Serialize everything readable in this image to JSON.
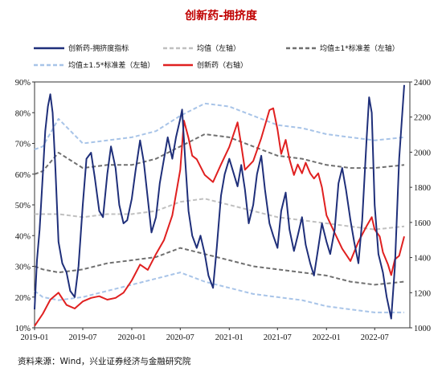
{
  "chart_data": {
    "type": "line",
    "title": "创新药-拥挤度",
    "source": "资料来源：Wind，兴业证券经济与金融研究院",
    "x_ticks": [
      "2019-01",
      "2019-07",
      "2020-01",
      "2020-07",
      "2021-01",
      "2021-07",
      "2022-01",
      "2022-07"
    ],
    "y_left": {
      "ylim": [
        0.1,
        0.9
      ],
      "ticks": [
        "10%",
        "20%",
        "30%",
        "40%",
        "50%",
        "60%",
        "70%",
        "80%",
        "90%"
      ]
    },
    "y_right": {
      "ylim": [
        1000,
        2400
      ],
      "ticks": [
        "1000",
        "1200",
        "1400",
        "1600",
        "1800",
        "2000",
        "2200",
        "2400"
      ]
    },
    "legend": [
      "创新药-拥挤度指标",
      "均值（左轴）",
      "均值±1*标准差（左轴）",
      "均值±1.5*标准差（左轴）",
      "创新药（右轴）"
    ],
    "colors": {
      "crowding": "#1f2f7a",
      "mean": "#c0c0c0",
      "std1": "#707070",
      "std15": "#a8c4e8",
      "price": "#e02020"
    },
    "series": [
      {
        "name": "创新药-拥挤度指标",
        "axis": "left",
        "points": [
          [
            "2019-01-01",
            0.16
          ],
          [
            "2019-01-10",
            0.32
          ],
          [
            "2019-01-20",
            0.42
          ],
          [
            "2019-02-01",
            0.6
          ],
          [
            "2019-02-10",
            0.74
          ],
          [
            "2019-02-20",
            0.82
          ],
          [
            "2019-03-01",
            0.86
          ],
          [
            "2019-03-10",
            0.8
          ],
          [
            "2019-03-20",
            0.62
          ],
          [
            "2019-04-01",
            0.38
          ],
          [
            "2019-04-15",
            0.31
          ],
          [
            "2019-05-01",
            0.28
          ],
          [
            "2019-05-15",
            0.22
          ],
          [
            "2019-06-01",
            0.2
          ],
          [
            "2019-06-15",
            0.3
          ],
          [
            "2019-07-01",
            0.5
          ],
          [
            "2019-07-15",
            0.65
          ],
          [
            "2019-08-01",
            0.67
          ],
          [
            "2019-08-15",
            0.59
          ],
          [
            "2019-09-01",
            0.48
          ],
          [
            "2019-09-15",
            0.46
          ],
          [
            "2019-10-01",
            0.6
          ],
          [
            "2019-10-15",
            0.69
          ],
          [
            "2019-11-01",
            0.62
          ],
          [
            "2019-11-15",
            0.5
          ],
          [
            "2019-12-01",
            0.44
          ],
          [
            "2019-12-15",
            0.45
          ],
          [
            "2020-01-01",
            0.52
          ],
          [
            "2020-01-15",
            0.61
          ],
          [
            "2020-02-01",
            0.71
          ],
          [
            "2020-02-15",
            0.64
          ],
          [
            "2020-03-01",
            0.52
          ],
          [
            "2020-03-15",
            0.41
          ],
          [
            "2020-04-01",
            0.46
          ],
          [
            "2020-04-15",
            0.57
          ],
          [
            "2020-05-01",
            0.65
          ],
          [
            "2020-05-15",
            0.72
          ],
          [
            "2020-06-01",
            0.65
          ],
          [
            "2020-06-15",
            0.72
          ],
          [
            "2020-07-01",
            0.78
          ],
          [
            "2020-07-08",
            0.81
          ],
          [
            "2020-07-20",
            0.64
          ],
          [
            "2020-08-01",
            0.48
          ],
          [
            "2020-08-15",
            0.4
          ],
          [
            "2020-09-01",
            0.36
          ],
          [
            "2020-09-15",
            0.4
          ],
          [
            "2020-10-01",
            0.34
          ],
          [
            "2020-10-15",
            0.27
          ],
          [
            "2020-11-01",
            0.23
          ],
          [
            "2020-11-15",
            0.36
          ],
          [
            "2020-12-01",
            0.53
          ],
          [
            "2020-12-15",
            0.6
          ],
          [
            "2021-01-01",
            0.65
          ],
          [
            "2021-01-15",
            0.61
          ],
          [
            "2021-02-01",
            0.56
          ],
          [
            "2021-02-15",
            0.63
          ],
          [
            "2021-03-01",
            0.55
          ],
          [
            "2021-03-15",
            0.44
          ],
          [
            "2021-04-01",
            0.5
          ],
          [
            "2021-04-15",
            0.6
          ],
          [
            "2021-05-01",
            0.66
          ],
          [
            "2021-05-15",
            0.55
          ],
          [
            "2021-06-01",
            0.44
          ],
          [
            "2021-06-15",
            0.4
          ],
          [
            "2021-07-01",
            0.36
          ],
          [
            "2021-07-15",
            0.48
          ],
          [
            "2021-08-01",
            0.54
          ],
          [
            "2021-08-15",
            0.42
          ],
          [
            "2021-09-01",
            0.35
          ],
          [
            "2021-09-15",
            0.4
          ],
          [
            "2021-10-01",
            0.46
          ],
          [
            "2021-10-15",
            0.37
          ],
          [
            "2021-11-01",
            0.31
          ],
          [
            "2021-11-15",
            0.27
          ],
          [
            "2021-12-01",
            0.36
          ],
          [
            "2021-12-15",
            0.44
          ],
          [
            "2022-01-01",
            0.38
          ],
          [
            "2022-01-15",
            0.34
          ],
          [
            "2022-02-01",
            0.42
          ],
          [
            "2022-02-15",
            0.57
          ],
          [
            "2022-03-01",
            0.62
          ],
          [
            "2022-03-15",
            0.55
          ],
          [
            "2022-04-01",
            0.45
          ],
          [
            "2022-04-15",
            0.38
          ],
          [
            "2022-05-01",
            0.31
          ],
          [
            "2022-05-15",
            0.45
          ],
          [
            "2022-06-01",
            0.72
          ],
          [
            "2022-06-10",
            0.85
          ],
          [
            "2022-06-20",
            0.8
          ],
          [
            "2022-07-01",
            0.5
          ],
          [
            "2022-07-15",
            0.34
          ],
          [
            "2022-08-01",
            0.28
          ],
          [
            "2022-08-15",
            0.2
          ],
          [
            "2022-09-01",
            0.13
          ],
          [
            "2022-09-15",
            0.3
          ],
          [
            "2022-10-01",
            0.65
          ],
          [
            "2022-10-20",
            0.89
          ]
        ]
      },
      {
        "name": "均值（左轴）",
        "axis": "left",
        "points": [
          [
            "2019-01-01",
            0.47
          ],
          [
            "2019-04-01",
            0.47
          ],
          [
            "2019-07-01",
            0.46
          ],
          [
            "2019-10-01",
            0.47
          ],
          [
            "2020-01-01",
            0.47
          ],
          [
            "2020-04-01",
            0.48
          ],
          [
            "2020-07-01",
            0.51
          ],
          [
            "2020-10-01",
            0.52
          ],
          [
            "2021-01-01",
            0.5
          ],
          [
            "2021-04-01",
            0.48
          ],
          [
            "2021-07-01",
            0.46
          ],
          [
            "2021-10-01",
            0.45
          ],
          [
            "2022-01-01",
            0.44
          ],
          [
            "2022-04-01",
            0.43
          ],
          [
            "2022-07-01",
            0.42
          ],
          [
            "2022-10-20",
            0.43
          ]
        ]
      },
      {
        "name": "均值±1*标准差（左轴）",
        "axis": "left",
        "points": [
          [
            "2019-01-01",
            0.6
          ],
          [
            "2019-02-01",
            0.61
          ],
          [
            "2019-04-01",
            0.67
          ],
          [
            "2019-07-01",
            0.62
          ],
          [
            "2019-10-01",
            0.63
          ],
          [
            "2020-01-01",
            0.63
          ],
          [
            "2020-04-01",
            0.65
          ],
          [
            "2020-07-01",
            0.69
          ],
          [
            "2020-10-01",
            0.73
          ],
          [
            "2021-01-01",
            0.72
          ],
          [
            "2021-04-01",
            0.69
          ],
          [
            "2021-07-01",
            0.66
          ],
          [
            "2021-10-01",
            0.65
          ],
          [
            "2022-01-01",
            0.63
          ],
          [
            "2022-04-01",
            0.62
          ],
          [
            "2022-07-01",
            0.62
          ],
          [
            "2022-10-20",
            0.63
          ]
        ]
      },
      {
        "name": "均值±1*标准差（左轴）",
        "axis": "left",
        "points": [
          [
            "2019-01-01",
            0.3
          ],
          [
            "2019-02-01",
            0.29
          ],
          [
            "2019-04-01",
            0.28
          ],
          [
            "2019-07-01",
            0.29
          ],
          [
            "2019-10-01",
            0.31
          ],
          [
            "2020-01-01",
            0.32
          ],
          [
            "2020-04-01",
            0.33
          ],
          [
            "2020-07-01",
            0.36
          ],
          [
            "2020-10-01",
            0.34
          ],
          [
            "2021-01-01",
            0.32
          ],
          [
            "2021-04-01",
            0.3
          ],
          [
            "2021-07-01",
            0.29
          ],
          [
            "2021-10-01",
            0.28
          ],
          [
            "2022-01-01",
            0.27
          ],
          [
            "2022-04-01",
            0.25
          ],
          [
            "2022-07-01",
            0.24
          ],
          [
            "2022-10-20",
            0.25
          ]
        ]
      },
      {
        "name": "均值±1.5*标准差（左轴）",
        "axis": "left",
        "points": [
          [
            "2019-01-01",
            0.68
          ],
          [
            "2019-02-01",
            0.69
          ],
          [
            "2019-04-01",
            0.78
          ],
          [
            "2019-07-01",
            0.7
          ],
          [
            "2019-10-01",
            0.71
          ],
          [
            "2020-01-01",
            0.72
          ],
          [
            "2020-04-01",
            0.74
          ],
          [
            "2020-07-01",
            0.79
          ],
          [
            "2020-10-01",
            0.83
          ],
          [
            "2021-01-01",
            0.82
          ],
          [
            "2021-04-01",
            0.79
          ],
          [
            "2021-07-01",
            0.76
          ],
          [
            "2021-10-01",
            0.75
          ],
          [
            "2022-01-01",
            0.73
          ],
          [
            "2022-04-01",
            0.72
          ],
          [
            "2022-07-01",
            0.71
          ],
          [
            "2022-10-20",
            0.72
          ]
        ]
      },
      {
        "name": "均值±1.5*标准差（左轴）",
        "axis": "left",
        "points": [
          [
            "2019-01-01",
            0.22
          ],
          [
            "2019-02-01",
            0.2
          ],
          [
            "2019-04-01",
            0.19
          ],
          [
            "2019-07-01",
            0.2
          ],
          [
            "2019-10-01",
            0.22
          ],
          [
            "2020-01-01",
            0.24
          ],
          [
            "2020-04-01",
            0.26
          ],
          [
            "2020-07-01",
            0.28
          ],
          [
            "2020-10-01",
            0.25
          ],
          [
            "2021-01-01",
            0.23
          ],
          [
            "2021-04-01",
            0.21
          ],
          [
            "2021-07-01",
            0.2
          ],
          [
            "2021-10-01",
            0.19
          ],
          [
            "2022-01-01",
            0.17
          ],
          [
            "2022-04-01",
            0.16
          ],
          [
            "2022-07-01",
            0.15
          ],
          [
            "2022-10-20",
            0.15
          ]
        ]
      },
      {
        "name": "创新药（右轴）",
        "axis": "right",
        "points": [
          [
            "2019-01-01",
            1010
          ],
          [
            "2019-02-01",
            1080
          ],
          [
            "2019-03-01",
            1160
          ],
          [
            "2019-04-01",
            1200
          ],
          [
            "2019-05-01",
            1130
          ],
          [
            "2019-06-01",
            1110
          ],
          [
            "2019-07-01",
            1150
          ],
          [
            "2019-08-01",
            1170
          ],
          [
            "2019-09-01",
            1180
          ],
          [
            "2019-10-01",
            1160
          ],
          [
            "2019-11-01",
            1170
          ],
          [
            "2019-12-01",
            1200
          ],
          [
            "2020-01-01",
            1270
          ],
          [
            "2020-02-01",
            1360
          ],
          [
            "2020-03-01",
            1330
          ],
          [
            "2020-04-01",
            1420
          ],
          [
            "2020-05-01",
            1500
          ],
          [
            "2020-06-01",
            1640
          ],
          [
            "2020-07-01",
            1900
          ],
          [
            "2020-07-15",
            2180
          ],
          [
            "2020-08-01",
            2080
          ],
          [
            "2020-08-15",
            1980
          ],
          [
            "2020-09-01",
            1960
          ],
          [
            "2020-10-01",
            1870
          ],
          [
            "2020-11-01",
            1830
          ],
          [
            "2020-12-01",
            1930
          ],
          [
            "2021-01-01",
            2030
          ],
          [
            "2021-02-01",
            2170
          ],
          [
            "2021-02-15",
            2040
          ],
          [
            "2021-03-01",
            1900
          ],
          [
            "2021-04-01",
            1950
          ],
          [
            "2021-05-01",
            2080
          ],
          [
            "2021-06-01",
            2240
          ],
          [
            "2021-06-15",
            2250
          ],
          [
            "2021-07-01",
            2130
          ],
          [
            "2021-07-15",
            1990
          ],
          [
            "2021-08-01",
            2070
          ],
          [
            "2021-08-15",
            1960
          ],
          [
            "2021-09-01",
            1870
          ],
          [
            "2021-09-15",
            1930
          ],
          [
            "2021-10-01",
            1880
          ],
          [
            "2021-10-15",
            1940
          ],
          [
            "2021-11-01",
            1880
          ],
          [
            "2021-11-15",
            1850
          ],
          [
            "2021-12-01",
            1880
          ],
          [
            "2021-12-15",
            1800
          ],
          [
            "2022-01-01",
            1640
          ],
          [
            "2022-02-01",
            1540
          ],
          [
            "2022-03-01",
            1450
          ],
          [
            "2022-04-01",
            1380
          ],
          [
            "2022-05-01",
            1490
          ],
          [
            "2022-06-01",
            1580
          ],
          [
            "2022-06-20",
            1630
          ],
          [
            "2022-07-01",
            1560
          ],
          [
            "2022-07-20",
            1520
          ],
          [
            "2022-08-01",
            1430
          ],
          [
            "2022-08-20",
            1360
          ],
          [
            "2022-09-01",
            1300
          ],
          [
            "2022-09-15",
            1390
          ],
          [
            "2022-10-01",
            1410
          ],
          [
            "2022-10-20",
            1520
          ]
        ]
      }
    ]
  }
}
